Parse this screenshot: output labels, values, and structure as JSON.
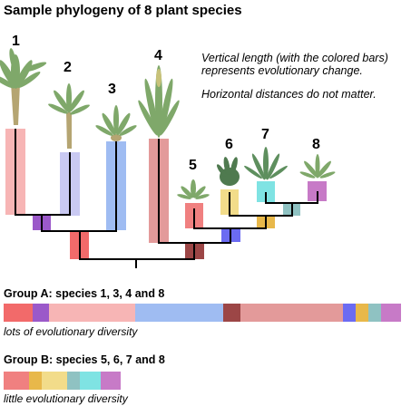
{
  "title": "Sample phylogeny of 8 plant species",
  "notes": [
    "Vertical length (with the colored bars)",
    "represents evolutionary change.",
    "Horizontal distances do not matter."
  ],
  "species_labels": [
    "1",
    "2",
    "3",
    "4",
    "5",
    "6",
    "7",
    "8"
  ],
  "group_a": {
    "title": "Group A: species 1, 3, 4 and 8",
    "caption": "lots of evolutionary diversity"
  },
  "group_b": {
    "title": "Group B: species 5, 6, 7 and 8",
    "caption": "little evolutionary diversity"
  },
  "colors": {
    "red": "#f26a6a",
    "purple": "#9b59c9",
    "pink": "#f7b5b5",
    "lavender": "#c9c9f2",
    "blue": "#9fbcf2",
    "rose": "#e39a9a",
    "maroon": "#9c4646",
    "coral": "#f08080",
    "violet": "#6b6bf2",
    "yellow": "#f2dc8a",
    "gold": "#e8b84a",
    "cyan": "#7fe3e3",
    "teal": "#8fc2c2",
    "magenta": "#c77ac7",
    "plant_green": "#7fa86a",
    "trunk": "#b5a572"
  }
}
